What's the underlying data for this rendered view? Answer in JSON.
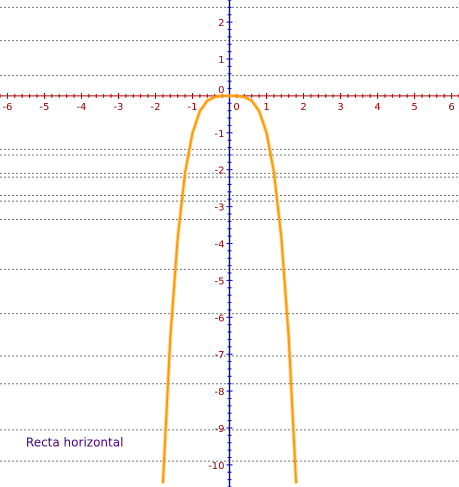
{
  "chart_data": {
    "type": "line",
    "title": "",
    "xlabel": "",
    "ylabel": "",
    "xlim": [
      -6.2,
      6.2
    ],
    "ylim": [
      -10.6,
      2.6
    ],
    "x_ticks": [
      -6,
      -5,
      -4,
      -3,
      -2,
      -1,
      0,
      1,
      2,
      3,
      4,
      5,
      6
    ],
    "y_ticks": [
      2,
      1,
      0,
      -1,
      -2,
      -3,
      -4,
      -5,
      -6,
      -7,
      -8,
      -9,
      -10
    ],
    "x_tick_labels": [
      "-6",
      "-5",
      "-4",
      "-3",
      "-2",
      "-1",
      "0",
      "1",
      "2",
      "3",
      "4",
      "5",
      "6"
    ],
    "y_tick_labels": [
      "2",
      "1",
      "0",
      "-1",
      "-2",
      "-3",
      "-4",
      "-5",
      "-6",
      "-7",
      "-8",
      "-9",
      "-10"
    ],
    "horizontal_lines_y": [
      2.4,
      1.5,
      0.55,
      -1.45,
      -1.6,
      -2.1,
      -2.2,
      -2.7,
      -2.85,
      -3.35,
      -4.7,
      -5.9,
      -7.05,
      -7.8,
      -9.05,
      -9.9
    ],
    "series": [
      {
        "color": "#ff9900",
        "x": [
          -1.8,
          -1.6,
          -1.4,
          -1.2,
          -1.0,
          -0.8,
          -0.6,
          -0.4,
          -0.2,
          0.0,
          0.2,
          0.4,
          0.6,
          0.8,
          1.0,
          1.2,
          1.4,
          1.6,
          1.8
        ],
        "y": [
          -10.5,
          -6.55,
          -3.84,
          -2.07,
          -1.0,
          -0.41,
          -0.13,
          -0.03,
          0.0,
          0.0,
          0.0,
          -0.03,
          -0.13,
          -0.41,
          -1.0,
          -2.07,
          -3.84,
          -6.55,
          -10.5
        ]
      }
    ],
    "grid": "horizontal dashed lines",
    "legend": "none",
    "annotations": [
      {
        "text": "Recta horizontal",
        "x": -5.5,
        "y": -9.5
      }
    ],
    "colors": {
      "x_axis": "#aa0000",
      "y_axis": "#0000cc",
      "ticks": "#990000",
      "grid": "#777777",
      "annotation": "#4b0082"
    }
  }
}
